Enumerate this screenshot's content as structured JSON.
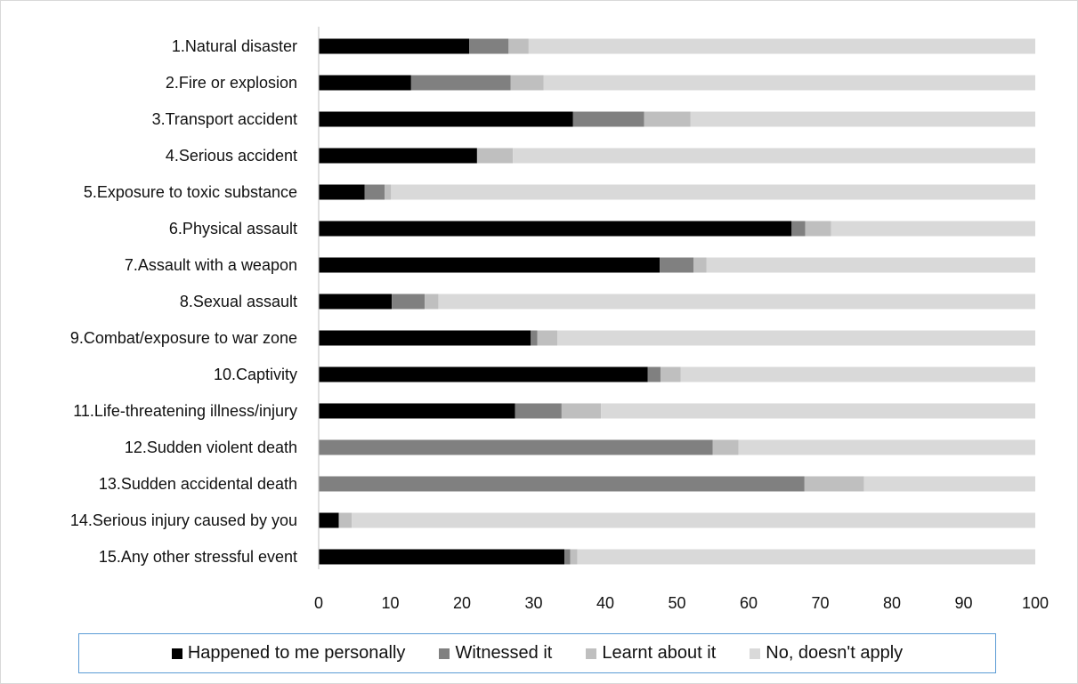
{
  "chart_data": {
    "type": "bar",
    "orientation": "horizontal",
    "stacked": true,
    "title": "",
    "xlabel": "",
    "ylabel": "",
    "xlim": [
      0,
      100
    ],
    "ticks": [
      "0",
      "10",
      "20",
      "30",
      "40",
      "50",
      "60",
      "70",
      "80",
      "90",
      "100"
    ],
    "tick_values": [
      0,
      10,
      20,
      30,
      40,
      50,
      60,
      70,
      80,
      90,
      100
    ],
    "grid": false,
    "legend_position": "bottom",
    "categories": [
      "1.Natural disaster",
      "2.Fire or explosion",
      "3.Transport accident",
      "4.Serious accident",
      "5.Exposure to toxic substance",
      "6.Physical assault",
      "7.Assault with a weapon",
      "8.Sexual assault",
      "9.Combat/exposure to war zone",
      "10.Captivity",
      "11.Life-threatening illness/injury",
      "12.Sudden violent death",
      "13.Sudden accidental death",
      "14.Serious injury caused by you",
      "15.Any other stressful event"
    ],
    "series": [
      {
        "name": "Happened to me personally",
        "color": "#000000",
        "values": [
          21,
          12.9,
          35.5,
          22.1,
          6.4,
          66,
          47.6,
          10.2,
          29.6,
          45.9,
          27.4,
          0,
          0,
          2.8,
          34.3
        ]
      },
      {
        "name": "Witnessed it",
        "color": "#808080",
        "values": [
          5.5,
          13.9,
          9.9,
          0,
          2.8,
          1.9,
          4.7,
          4.6,
          0.9,
          1.8,
          6.5,
          55,
          67.8,
          0,
          0.8
        ]
      },
      {
        "name": "Learnt about it",
        "color": "#bfbfbf",
        "values": [
          2.8,
          4.6,
          6.5,
          5,
          0.9,
          3.6,
          1.8,
          1.9,
          2.8,
          2.8,
          5.5,
          3.6,
          8.3,
          1.8,
          1
        ]
      },
      {
        "name": "No, doesn't apply",
        "color": "#d9d9d9",
        "values": [
          70.7,
          68.6,
          48.1,
          72.9,
          89.9,
          28.5,
          45.9,
          83.3,
          66.7,
          49.5,
          60.6,
          41.4,
          23.9,
          95.4,
          63.9
        ]
      }
    ]
  }
}
